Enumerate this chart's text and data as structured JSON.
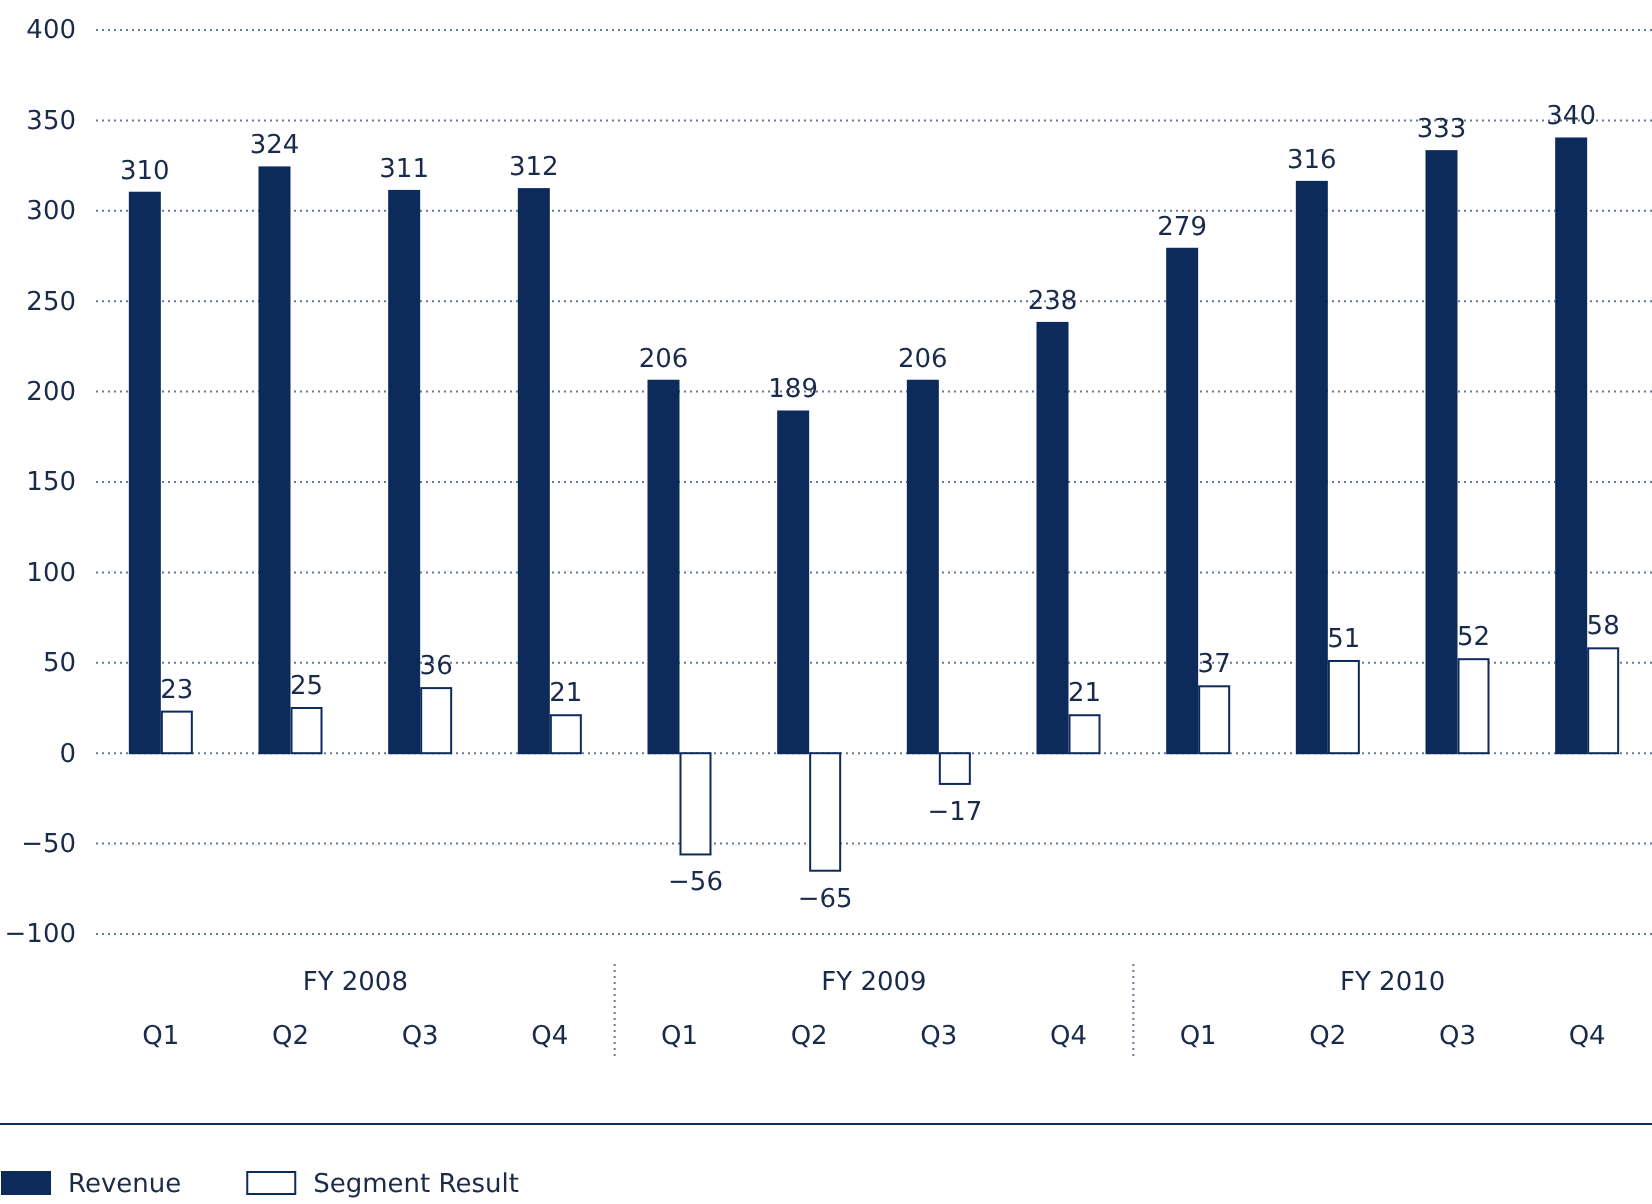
{
  "chart_data": {
    "type": "bar",
    "categories": [
      "Q1",
      "Q2",
      "Q3",
      "Q4",
      "Q1",
      "Q2",
      "Q3",
      "Q4",
      "Q1",
      "Q2",
      "Q3",
      "Q4"
    ],
    "annotations": [
      "FY 2008",
      "FY 2009",
      "FY 2010"
    ],
    "series": [
      {
        "name": "Revenue",
        "color": "#0c2b5b",
        "values": [
          310,
          324,
          311,
          312,
          206,
          189,
          206,
          238,
          279,
          316,
          333,
          340
        ]
      },
      {
        "name": "Segment Result",
        "color": "#ffffff",
        "values": [
          23,
          25,
          36,
          21,
          -56,
          -65,
          -17,
          21,
          37,
          51,
          52,
          58
        ]
      }
    ],
    "ylim": [
      -100,
      400
    ],
    "yticks": [
      -100,
      -50,
      0,
      50,
      100,
      150,
      200,
      250,
      300,
      350,
      400
    ],
    "grid": "y",
    "legend": "bottom left",
    "data_labels": true
  }
}
